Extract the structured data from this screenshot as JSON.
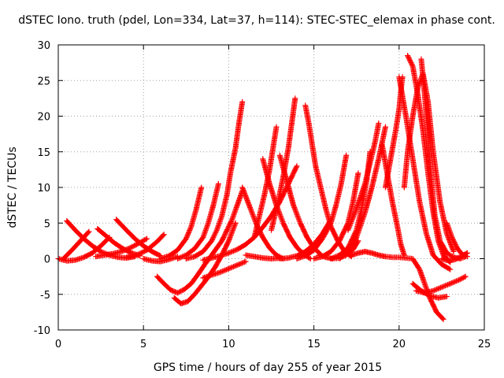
{
  "chart_data": {
    "type": "scatter",
    "title": "dSTEC Iono. truth (pdel, Lon=334, Lat=37, h=114): STEC-STEC_elemax in phase cont.",
    "xlabel": "GPS time / hours of day 255 of year 2015",
    "ylabel": "dSTEC  / TECUs",
    "xlim": [
      0,
      25
    ],
    "ylim": [
      -10,
      30
    ],
    "x_ticks": [
      "0",
      "5",
      "10",
      "15",
      "20",
      "25"
    ],
    "y_ticks": [
      "-10",
      "-5",
      "0",
      "5",
      "10",
      "15",
      "20",
      "25",
      "30"
    ],
    "grid": true,
    "marker": "+",
    "color": "#ff0000",
    "series": [
      {
        "x": [
          0.0,
          0.5,
          1.0,
          1.5,
          2.0,
          2.5,
          3.0
        ],
        "y": [
          0.0,
          -0.3,
          -0.2,
          0.2,
          0.8,
          1.8,
          3.0
        ]
      },
      {
        "x": [
          0.5,
          1.0,
          1.5,
          2.0,
          2.5,
          3.0,
          3.5,
          4.0,
          4.5
        ],
        "y": [
          5.3,
          4.0,
          2.8,
          1.8,
          1.0,
          0.5,
          0.2,
          0.1,
          0.3
        ]
      },
      {
        "x": [
          0.3,
          0.8,
          1.3,
          1.8
        ],
        "y": [
          0.0,
          1.2,
          2.5,
          3.8
        ]
      },
      {
        "x": [
          2.3,
          2.8,
          3.3,
          3.8,
          4.3,
          4.8
        ],
        "y": [
          4.2,
          3.2,
          2.2,
          1.4,
          0.8,
          0.4
        ]
      },
      {
        "x": [
          2.2,
          2.7,
          3.2,
          3.7,
          4.2,
          4.6,
          5.2
        ],
        "y": [
          0.3,
          0.5,
          0.7,
          1.0,
          1.5,
          2.0,
          2.8
        ]
      },
      {
        "x": [
          3.4,
          4.0,
          4.5,
          5.0,
          5.5,
          6.0
        ],
        "y": [
          5.5,
          4.0,
          2.8,
          1.8,
          1.0,
          0.4
        ]
      },
      {
        "x": [
          4.0,
          4.6,
          5.2,
          5.8,
          6.2
        ],
        "y": [
          0.2,
          0.5,
          1.2,
          2.4,
          3.4
        ]
      },
      {
        "x": [
          5.0,
          5.5,
          6.0,
          6.5,
          7.0
        ],
        "y": [
          0.0,
          -0.3,
          -0.4,
          -0.1,
          0.3
        ]
      },
      {
        "x": [
          5.8,
          6.2,
          6.6,
          7.0,
          7.4,
          7.8,
          8.2,
          8.6,
          9.0,
          9.6,
          10.2,
          10.8
        ],
        "y": [
          -2.5,
          -3.5,
          -4.4,
          -4.8,
          -4.3,
          -3.5,
          -2.2,
          -0.8,
          0.5,
          2.5,
          5.5,
          9.5
        ]
      },
      {
        "x": [
          6.8,
          7.2,
          7.6,
          8.0,
          8.4,
          8.8,
          9.2,
          9.6,
          10.0,
          10.4
        ],
        "y": [
          -5.5,
          -6.3,
          -6.0,
          -5.0,
          -3.8,
          -2.6,
          -1.2,
          0.5,
          2.5,
          5.0
        ]
      },
      {
        "x": [
          6.0,
          6.5,
          7.0,
          7.5,
          7.8,
          8.1,
          8.4
        ],
        "y": [
          0.0,
          0.4,
          1.2,
          2.8,
          4.5,
          7.0,
          10.0
        ]
      },
      {
        "x": [
          7.0,
          7.5,
          8.0,
          8.5,
          8.8,
          9.1,
          9.4
        ],
        "y": [
          0.0,
          0.5,
          1.4,
          3.0,
          5.0,
          7.5,
          10.5
        ]
      },
      {
        "x": [
          7.5,
          8.0,
          8.5,
          9.0,
          9.3,
          9.6,
          9.9,
          10.1,
          10.4,
          10.6,
          10.8
        ],
        "y": [
          0.0,
          0.3,
          1.0,
          2.5,
          4.0,
          6.0,
          9.0,
          12.0,
          15.5,
          19.0,
          22.0
        ]
      },
      {
        "x": [
          8.5,
          9.0,
          9.5,
          10.0,
          10.5,
          11.0
        ],
        "y": [
          -2.7,
          -2.3,
          -1.9,
          -1.4,
          -0.9,
          -0.4
        ]
      },
      {
        "x": [
          8.5,
          9.0,
          9.5,
          10.0,
          10.5,
          11.0,
          11.5,
          12.0,
          12.5,
          13.0,
          13.5,
          14.0
        ],
        "y": [
          -0.2,
          0.1,
          0.4,
          0.8,
          1.3,
          2.0,
          3.0,
          4.4,
          6.0,
          8.0,
          10.5,
          13.0
        ]
      },
      {
        "x": [
          11.0,
          11.5,
          12.0,
          12.5,
          13.0
        ],
        "y": [
          0.5,
          0.3,
          0.1,
          0.0,
          0.1
        ]
      },
      {
        "x": [
          10.8,
          11.2,
          11.6,
          12.0,
          12.4,
          12.8,
          13.2
        ],
        "y": [
          10.0,
          7.5,
          5.0,
          3.0,
          1.5,
          0.5,
          0.0
        ]
      },
      {
        "x": [
          11.5,
          11.8,
          12.1,
          12.4,
          12.6,
          12.8
        ],
        "y": [
          3.0,
          6.0,
          9.0,
          12.5,
          15.5,
          18.5
        ]
      },
      {
        "x": [
          12.0,
          12.4,
          12.8,
          13.2,
          13.6,
          14.0,
          14.4,
          14.8
        ],
        "y": [
          14.0,
          10.5,
          7.5,
          5.0,
          3.0,
          1.6,
          0.6,
          0.0
        ]
      },
      {
        "x": [
          12.5,
          12.9,
          13.2,
          13.5,
          13.7,
          13.9
        ],
        "y": [
          4.0,
          8.0,
          11.5,
          15.5,
          19.0,
          22.5
        ]
      },
      {
        "x": [
          13.0,
          13.4,
          13.8,
          14.2,
          14.6,
          15.0,
          15.4
        ],
        "y": [
          14.5,
          11.0,
          7.5,
          5.0,
          3.0,
          1.5,
          0.6
        ]
      },
      {
        "x": [
          13.0,
          13.5,
          14.0,
          14.5,
          15.0,
          15.5,
          16.0
        ],
        "y": [
          0.0,
          0.1,
          0.4,
          1.0,
          2.0,
          3.5,
          5.5
        ]
      },
      {
        "x": [
          14.5,
          14.7,
          14.9,
          15.1,
          15.4,
          15.7,
          16.0,
          16.4,
          16.8,
          17.2
        ],
        "y": [
          21.5,
          19.0,
          16.0,
          13.0,
          10.0,
          7.0,
          4.5,
          2.5,
          1.0,
          0.3
        ]
      },
      {
        "x": [
          14.0,
          14.5,
          15.0,
          15.5,
          16.0,
          16.3,
          16.6,
          16.9
        ],
        "y": [
          0.0,
          0.4,
          1.2,
          2.8,
          5.0,
          7.5,
          10.5,
          14.5
        ]
      },
      {
        "x": [
          15.0,
          15.5,
          16.0,
          16.5,
          17.0,
          17.3,
          17.6
        ],
        "y": [
          0.0,
          0.3,
          1.0,
          2.5,
          5.0,
          8.0,
          12.0
        ]
      },
      {
        "x": [
          15.3,
          15.7,
          16.1,
          16.5,
          16.9,
          17.3,
          17.6
        ],
        "y": [
          0.5,
          0.2,
          0.0,
          0.1,
          0.5,
          1.3,
          2.5
        ]
      },
      {
        "x": [
          16.0,
          16.5,
          17.0,
          17.5,
          17.8,
          18.1,
          18.3
        ],
        "y": [
          0.0,
          0.5,
          1.5,
          4.0,
          7.0,
          11.0,
          15.0
        ]
      },
      {
        "x": [
          16.5,
          17.0,
          17.5,
          18.0,
          18.4,
          18.8,
          19.2
        ],
        "y": [
          0.0,
          1.0,
          3.0,
          6.5,
          10.0,
          14.0,
          18.5
        ]
      },
      {
        "x": [
          17.0,
          17.5,
          18.0,
          18.3,
          18.6,
          18.8
        ],
        "y": [
          4.0,
          7.0,
          10.5,
          13.5,
          16.5,
          19.0
        ]
      },
      {
        "x": [
          17.2,
          17.6,
          18.0,
          18.4,
          18.8,
          19.2,
          19.6,
          20.0,
          20.4,
          20.8,
          21.2,
          21.5,
          21.8,
          22.2,
          22.6
        ],
        "y": [
          0.5,
          0.8,
          1.0,
          0.8,
          0.5,
          0.3,
          0.2,
          0.2,
          0.1,
          0.0,
          -1.5,
          -3.5,
          -5.5,
          -7.5,
          -8.5
        ]
      },
      {
        "x": [
          19.0,
          19.3,
          19.6,
          19.9,
          20.1,
          20.3
        ],
        "y": [
          16.0,
          12.0,
          8.0,
          4.5,
          2.0,
          0.5
        ]
      },
      {
        "x": [
          19.2,
          19.5,
          19.8,
          20.0,
          20.1,
          20.2
        ],
        "y": [
          10.0,
          14.0,
          18.0,
          21.0,
          23.5,
          25.5
        ]
      },
      {
        "x": [
          20.0,
          20.4,
          20.8,
          21.2,
          21.6,
          22.0,
          22.5,
          23.0
        ],
        "y": [
          25.5,
          20.0,
          14.0,
          8.0,
          3.5,
          0.5,
          -0.8,
          -1.5
        ]
      },
      {
        "x": [
          20.3,
          20.5,
          20.8,
          21.1,
          21.4,
          21.7,
          22.0,
          22.4,
          22.8,
          23.2
        ],
        "y": [
          10.0,
          15.0,
          20.0,
          24.0,
          26.0,
          22.0,
          15.0,
          8.0,
          3.5,
          1.0
        ]
      },
      {
        "x": [
          20.5,
          20.8,
          21.1,
          21.4,
          21.7,
          22.0,
          22.3,
          22.6,
          23.0
        ],
        "y": [
          28.5,
          27.0,
          23.0,
          18.0,
          12.0,
          6.5,
          2.5,
          0.5,
          -0.5
        ]
      },
      {
        "x": [
          21.3,
          21.5,
          21.7,
          21.9,
          22.1,
          22.4,
          22.8,
          23.2,
          23.6,
          23.9
        ],
        "y": [
          28.0,
          23.0,
          17.0,
          11.0,
          6.0,
          2.5,
          0.8,
          0.2,
          0.0,
          0.3
        ]
      },
      {
        "x": [
          21.0,
          21.5,
          22.0,
          22.5,
          23.0,
          23.5,
          23.9
        ],
        "y": [
          -4.5,
          -4.8,
          -4.5,
          -4.0,
          -3.5,
          -3.0,
          -2.5
        ]
      },
      {
        "x": [
          20.8,
          21.3,
          21.8,
          22.3,
          22.8
        ],
        "y": [
          -3.5,
          -4.5,
          -5.2,
          -5.5,
          -5.3
        ]
      },
      {
        "x": [
          22.8,
          23.1,
          23.4,
          23.7,
          24.0
        ],
        "y": [
          5.0,
          3.0,
          1.5,
          0.6,
          0.3
        ]
      },
      {
        "x": [
          22.5,
          22.9,
          23.3,
          23.7,
          24.0
        ],
        "y": [
          0.0,
          -0.3,
          -0.1,
          0.4,
          0.8
        ]
      }
    ]
  }
}
